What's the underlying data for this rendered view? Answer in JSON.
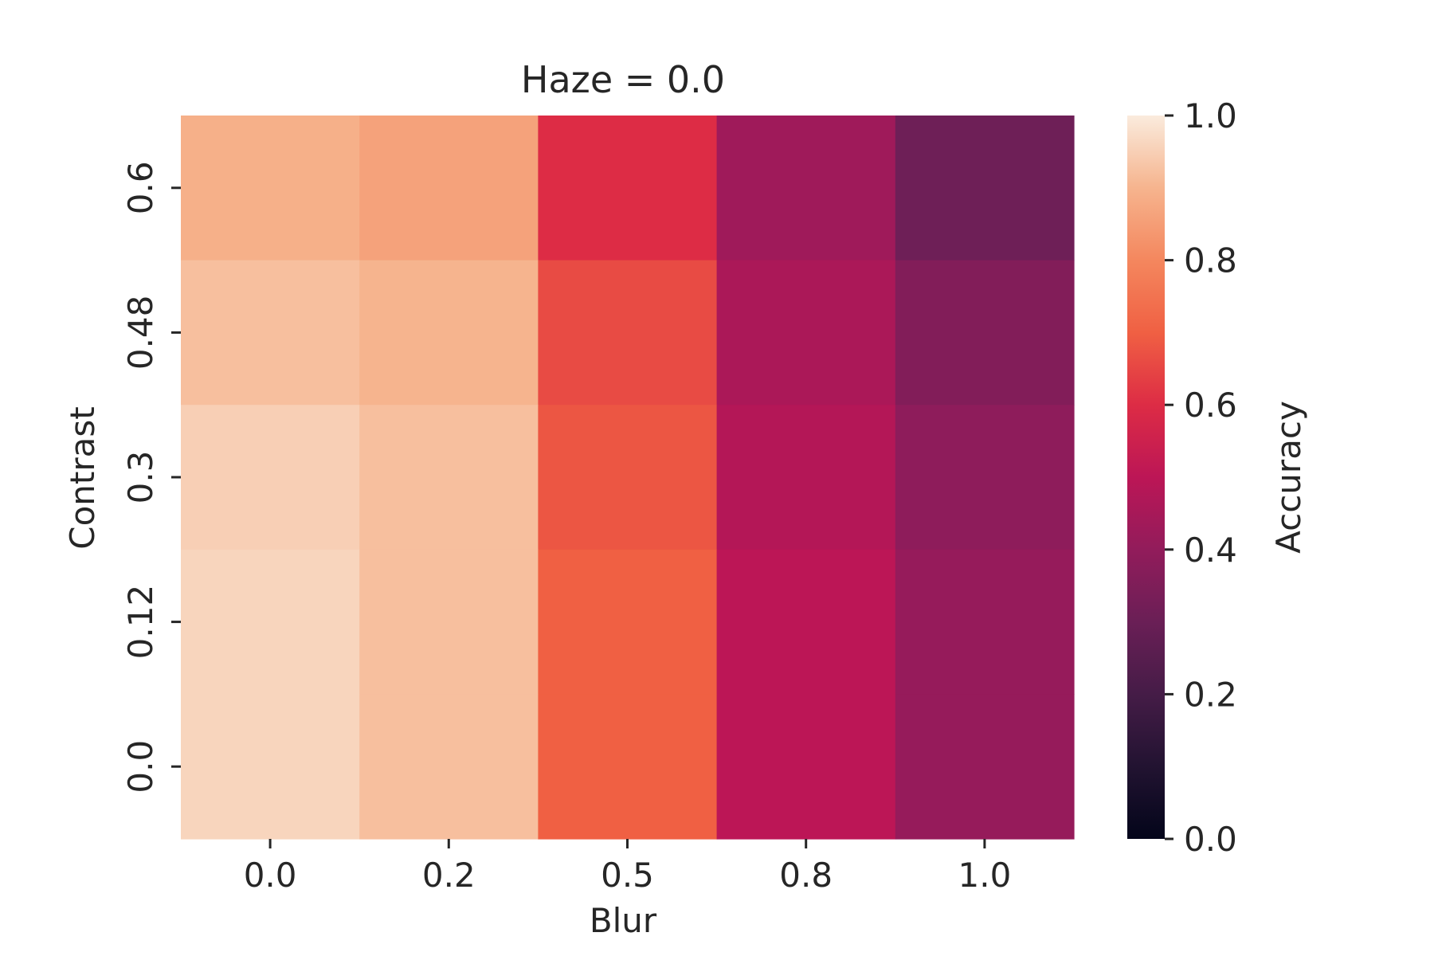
{
  "chart_data": {
    "type": "heatmap",
    "title": "Haze = 0.0",
    "xlabel": "Blur",
    "ylabel": "Contrast",
    "x_categories": [
      "0.0",
      "0.2",
      "0.5",
      "0.8",
      "1.0"
    ],
    "y_categories": [
      "0.6",
      "0.48",
      "0.3",
      "0.12",
      "0.0"
    ],
    "values": [
      [
        0.89,
        0.86,
        0.6,
        0.43,
        0.31
      ],
      [
        0.92,
        0.9,
        0.66,
        0.46,
        0.36
      ],
      [
        0.95,
        0.92,
        0.68,
        0.48,
        0.39
      ],
      [
        0.96,
        0.92,
        0.7,
        0.5,
        0.41
      ],
      [
        0.96,
        0.92,
        0.7,
        0.5,
        0.41
      ]
    ],
    "colorbar": {
      "label": "Accuracy",
      "range": [
        0.0,
        1.0
      ],
      "ticks": [
        "0.0",
        "0.2",
        "0.4",
        "0.6",
        "0.8",
        "1.0"
      ],
      "colormap": "rocket"
    }
  }
}
